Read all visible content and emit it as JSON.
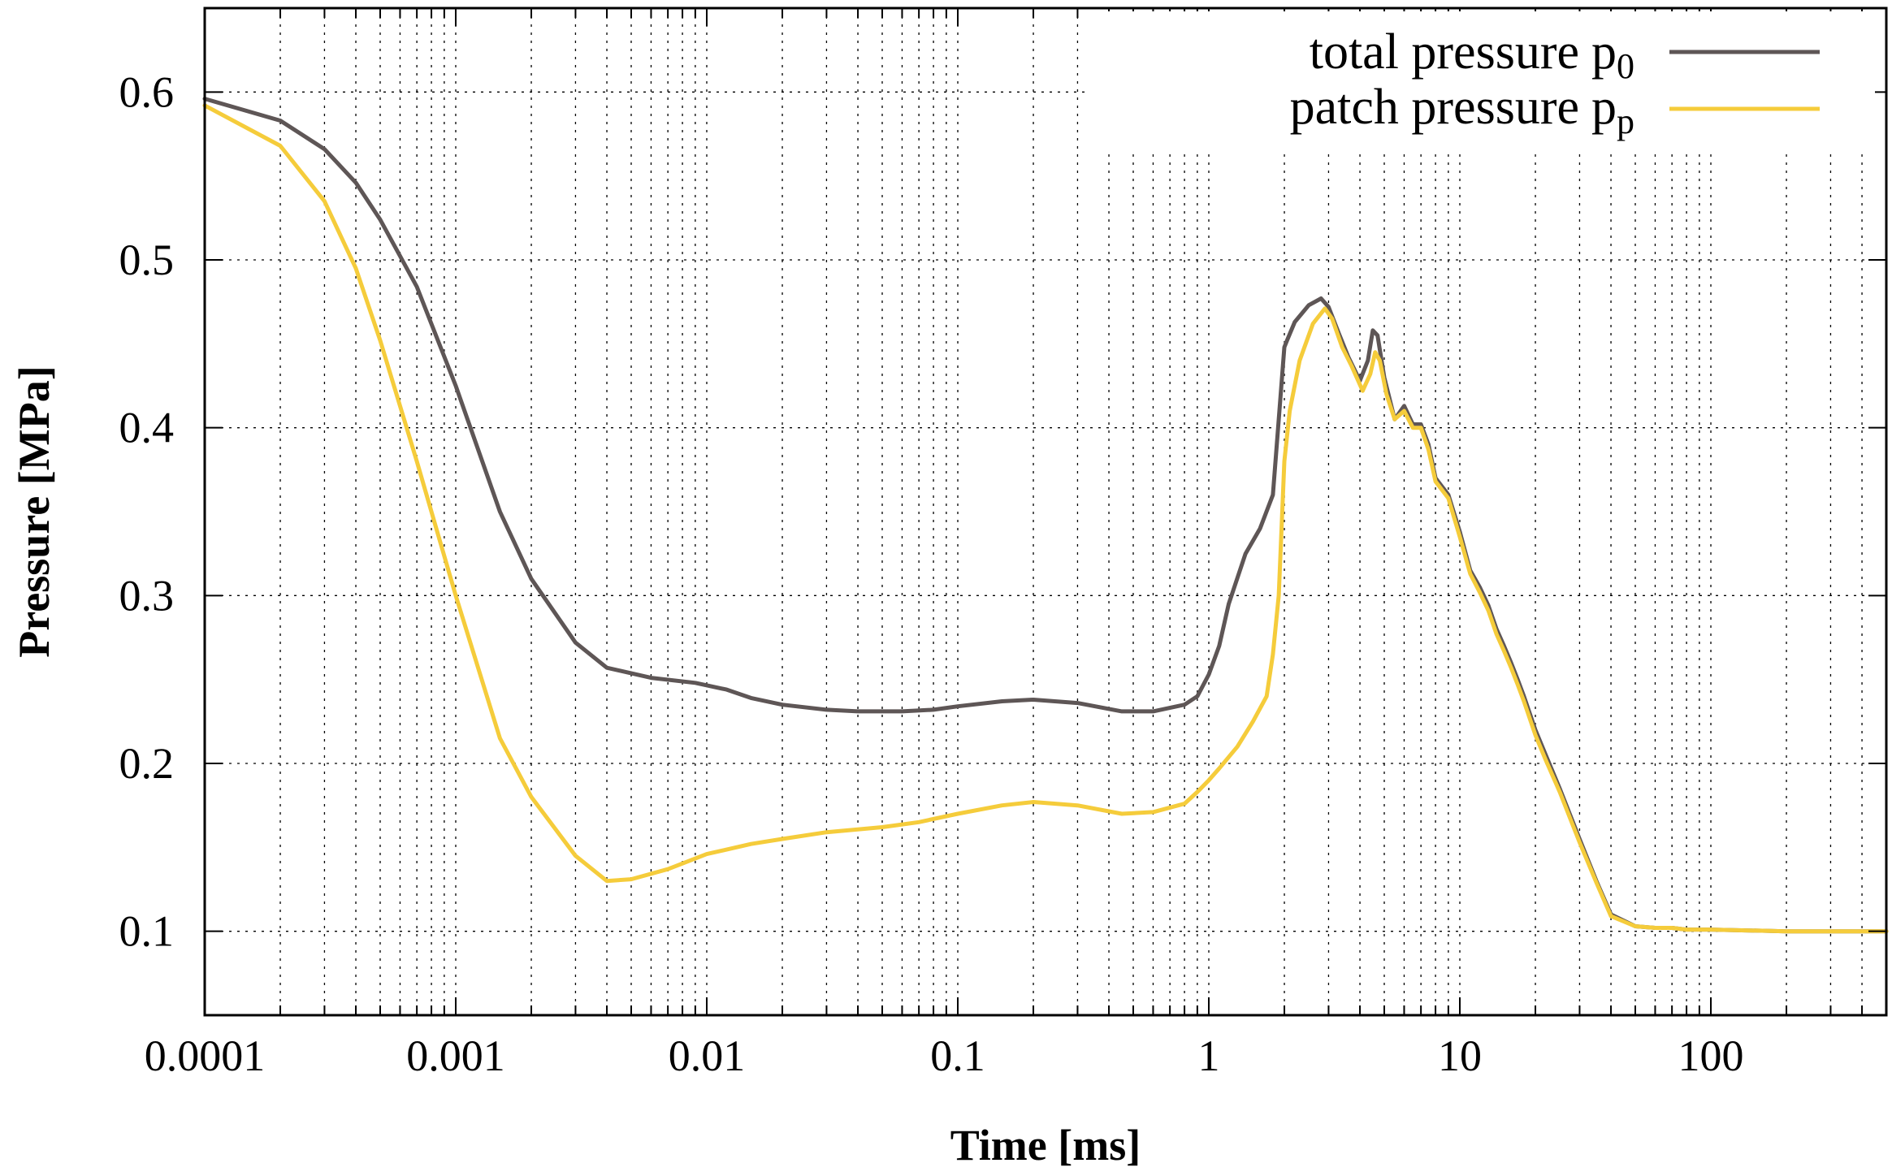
{
  "chart_data": {
    "type": "line",
    "title": "",
    "xlabel": "Time [ms]",
    "ylabel": "Pressure [MPa]",
    "xscale": "log",
    "xlim": [
      0.0001,
      500
    ],
    "ylim": [
      0.05,
      0.65
    ],
    "grid": true,
    "legend_position": "top-right",
    "x_tick_labels": [
      "0.0001",
      "0.001",
      "0.01",
      "0.1",
      "1",
      "10",
      "100"
    ],
    "x_tick_values": [
      0.0001,
      0.001,
      0.01,
      0.1,
      1,
      10,
      100
    ],
    "y_tick_labels": [
      "0.1",
      "0.2",
      "0.3",
      "0.4",
      "0.5",
      "0.6"
    ],
    "y_tick_values": [
      0.1,
      0.2,
      0.3,
      0.4,
      0.5,
      0.6
    ],
    "series": [
      {
        "name": "total pressure",
        "symbol": "p",
        "subscript": "0",
        "color": "#5e5656",
        "x": [
          0.0001,
          0.0002,
          0.0003,
          0.0004,
          0.0005,
          0.0007,
          0.001,
          0.0015,
          0.002,
          0.003,
          0.004,
          0.006,
          0.009,
          0.012,
          0.015,
          0.02,
          0.03,
          0.04,
          0.06,
          0.08,
          0.1,
          0.15,
          0.2,
          0.3,
          0.45,
          0.6,
          0.8,
          0.9,
          1.0,
          1.1,
          1.2,
          1.4,
          1.6,
          1.8,
          2.0,
          2.05,
          2.2,
          2.5,
          2.8,
          3.0,
          3.3,
          3.6,
          4.0,
          4.3,
          4.5,
          4.7,
          5.0,
          5.5,
          6.0,
          6.5,
          7.0,
          7.5,
          8.0,
          9.0,
          10,
          11,
          12,
          13,
          14,
          15,
          16,
          17,
          18,
          20,
          22,
          25,
          30,
          35,
          40,
          50,
          60,
          70,
          80,
          100,
          200,
          500
        ],
        "y": [
          0.596,
          0.583,
          0.566,
          0.546,
          0.524,
          0.484,
          0.425,
          0.35,
          0.31,
          0.272,
          0.257,
          0.251,
          0.248,
          0.244,
          0.239,
          0.235,
          0.232,
          0.231,
          0.231,
          0.232,
          0.234,
          0.237,
          0.238,
          0.236,
          0.231,
          0.231,
          0.235,
          0.24,
          0.253,
          0.27,
          0.295,
          0.325,
          0.34,
          0.36,
          0.448,
          0.452,
          0.463,
          0.473,
          0.477,
          0.472,
          0.456,
          0.442,
          0.428,
          0.44,
          0.458,
          0.455,
          0.43,
          0.405,
          0.413,
          0.402,
          0.402,
          0.39,
          0.37,
          0.36,
          0.338,
          0.315,
          0.305,
          0.294,
          0.28,
          0.27,
          0.26,
          0.25,
          0.24,
          0.22,
          0.205,
          0.185,
          0.155,
          0.13,
          0.11,
          0.103,
          0.102,
          0.102,
          0.101,
          0.101,
          0.1,
          0.1
        ]
      },
      {
        "name": "patch pressure",
        "symbol": "p",
        "subscript": "p",
        "color": "#f5cc3b",
        "x": [
          0.0001,
          0.0002,
          0.0003,
          0.0004,
          0.0005,
          0.0007,
          0.001,
          0.0015,
          0.002,
          0.003,
          0.004,
          0.005,
          0.007,
          0.01,
          0.015,
          0.02,
          0.03,
          0.05,
          0.07,
          0.1,
          0.15,
          0.2,
          0.3,
          0.45,
          0.6,
          0.8,
          0.9,
          1.0,
          1.1,
          1.3,
          1.5,
          1.7,
          1.8,
          1.9,
          2.0,
          2.1,
          2.3,
          2.6,
          2.9,
          3.1,
          3.4,
          3.7,
          4.1,
          4.4,
          4.6,
          4.8,
          5.1,
          5.5,
          6.0,
          6.5,
          7.0,
          7.5,
          8.0,
          9.0,
          10,
          11,
          12,
          13,
          14,
          15,
          16,
          17,
          18,
          20,
          22,
          25,
          30,
          35,
          40,
          50,
          60,
          70,
          80,
          100,
          200,
          500
        ],
        "y": [
          0.592,
          0.568,
          0.535,
          0.495,
          0.452,
          0.38,
          0.3,
          0.215,
          0.18,
          0.145,
          0.13,
          0.131,
          0.137,
          0.146,
          0.152,
          0.155,
          0.159,
          0.162,
          0.165,
          0.17,
          0.175,
          0.177,
          0.175,
          0.17,
          0.171,
          0.176,
          0.183,
          0.19,
          0.197,
          0.21,
          0.225,
          0.24,
          0.265,
          0.3,
          0.38,
          0.41,
          0.44,
          0.462,
          0.471,
          0.465,
          0.448,
          0.437,
          0.422,
          0.432,
          0.445,
          0.44,
          0.42,
          0.405,
          0.41,
          0.4,
          0.4,
          0.387,
          0.368,
          0.358,
          0.335,
          0.313,
          0.302,
          0.291,
          0.277,
          0.267,
          0.257,
          0.247,
          0.237,
          0.217,
          0.202,
          0.183,
          0.153,
          0.129,
          0.109,
          0.103,
          0.102,
          0.102,
          0.101,
          0.101,
          0.1,
          0.1
        ]
      }
    ]
  }
}
